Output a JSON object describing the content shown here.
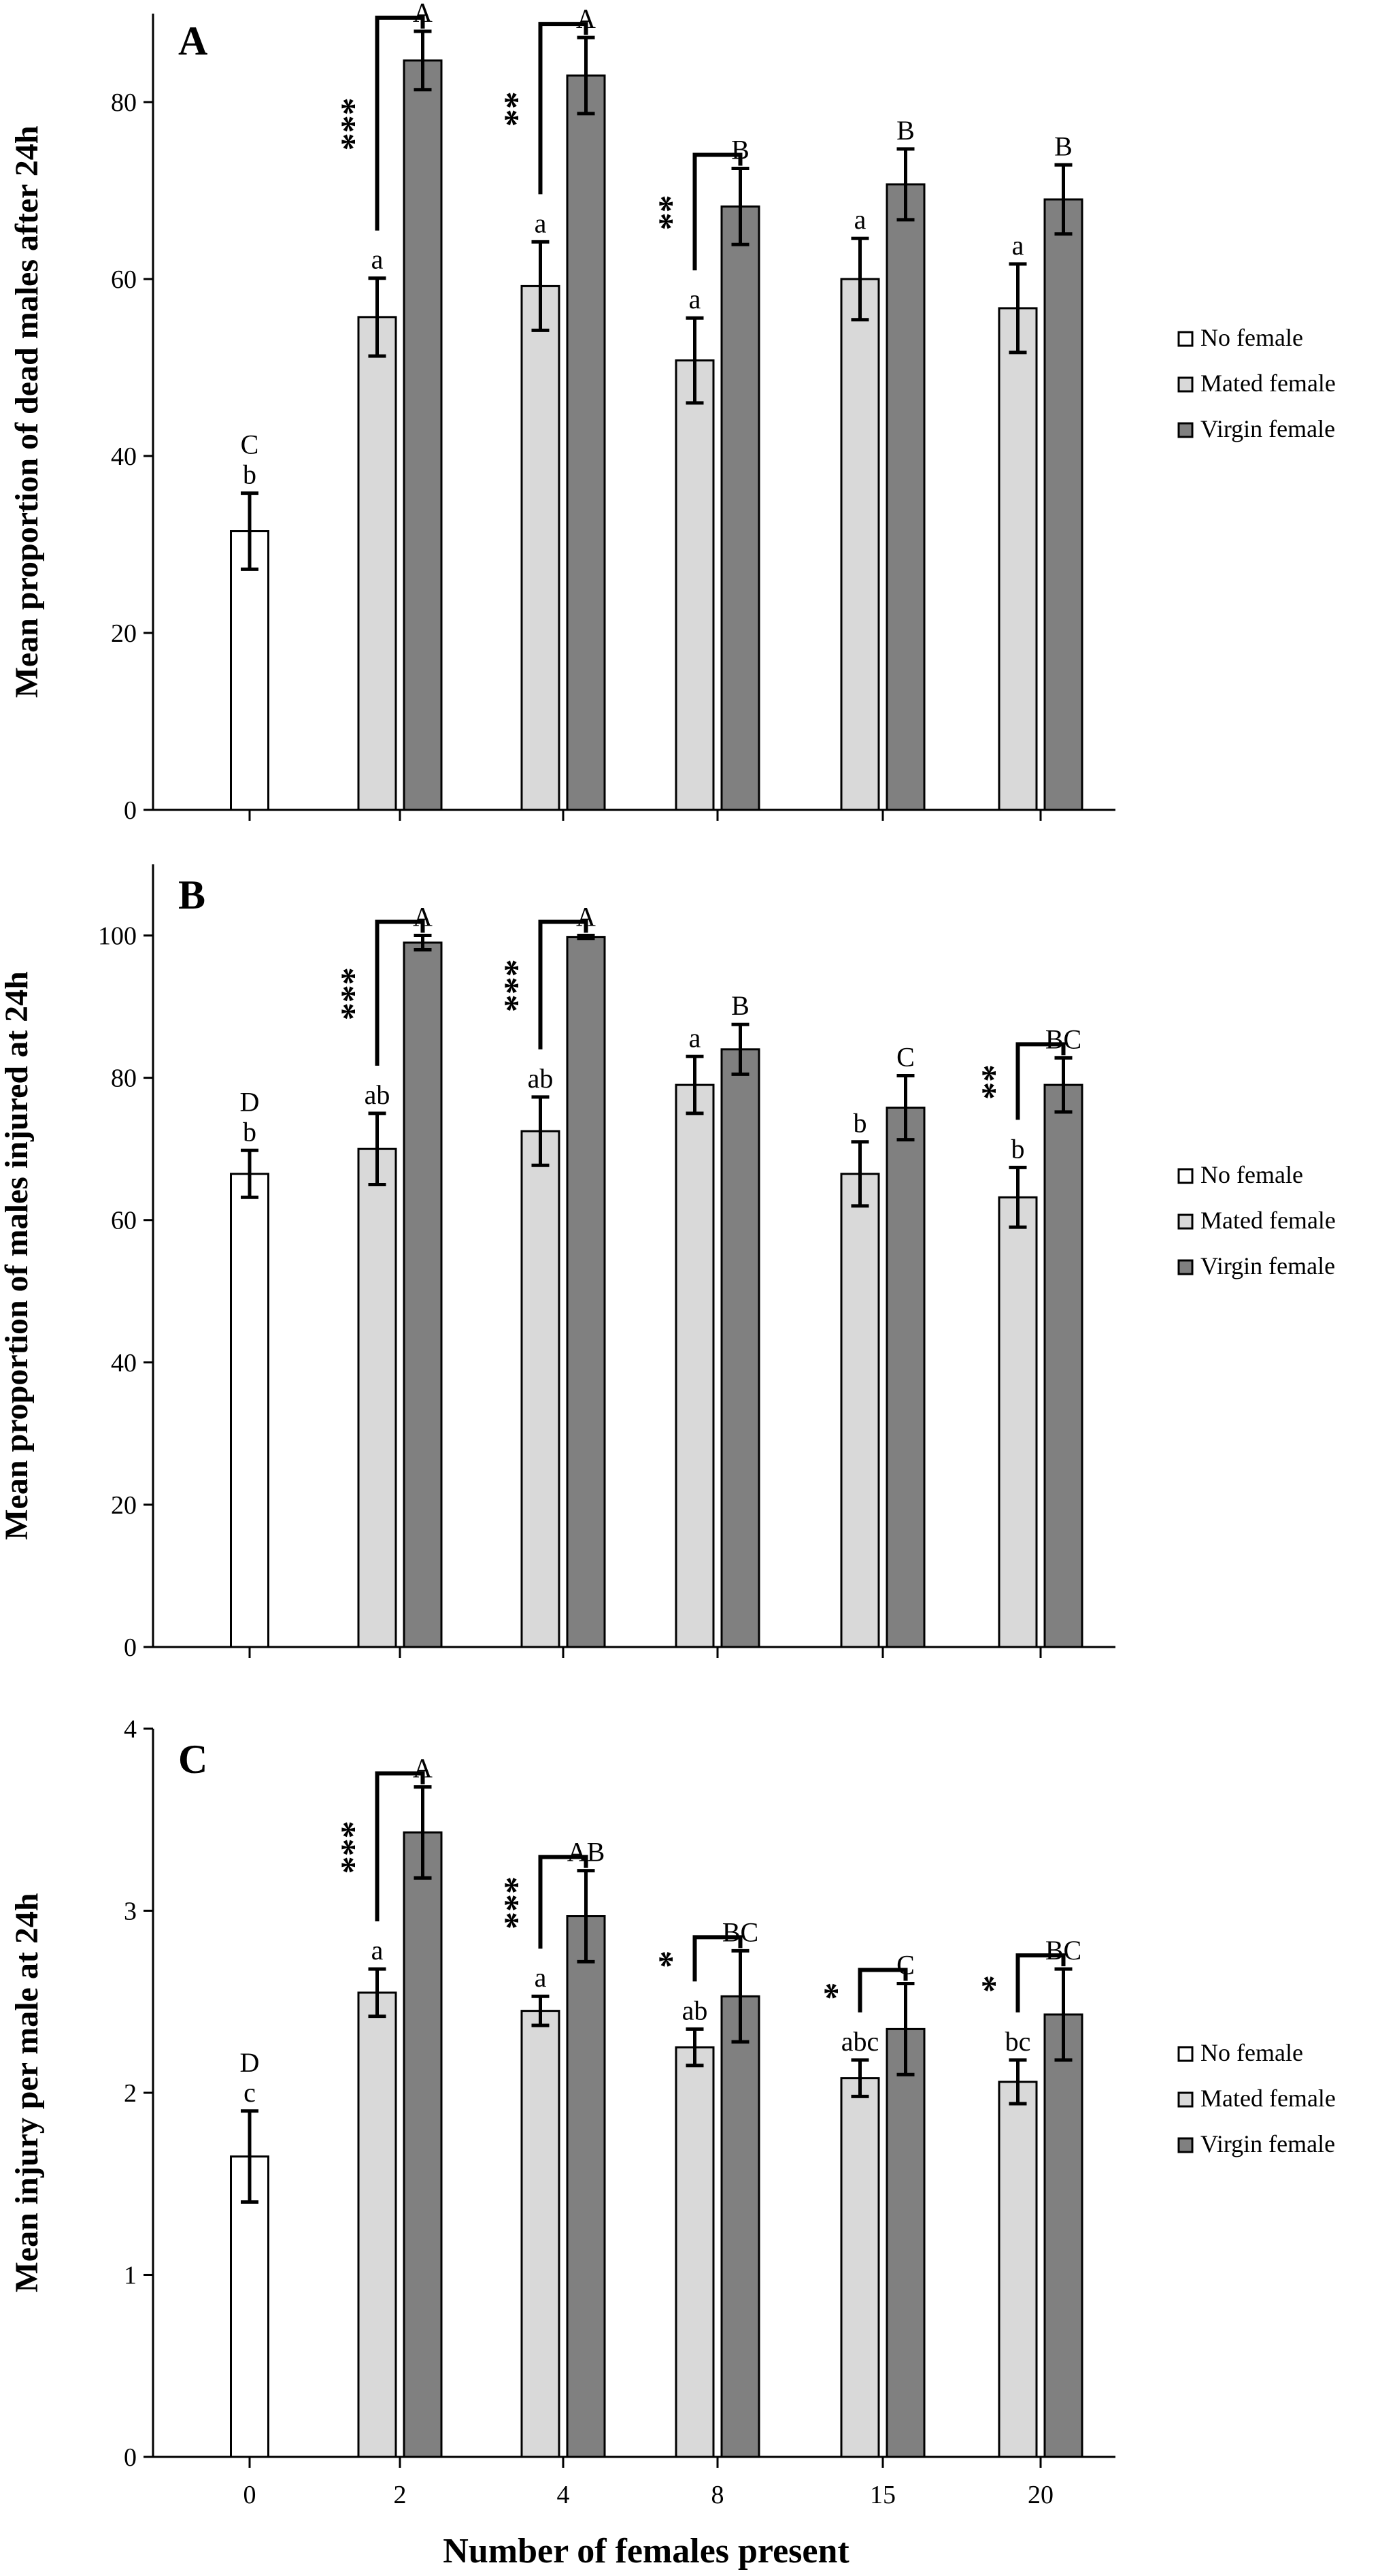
{
  "xlabel": "Number of females present",
  "legend": [
    {
      "label": "No female",
      "color": "#ffffff"
    },
    {
      "label": "Mated female",
      "color": "#d9d9d9"
    },
    {
      "label": "Virgin female",
      "color": "#808080"
    }
  ],
  "chart_data": [
    {
      "type": "bar",
      "panel": "A",
      "ylabel": "Mean proportion  of dead males after 24h",
      "ylim": [
        0,
        90
      ],
      "yticks": [
        0,
        20,
        40,
        60,
        80
      ],
      "categories": [
        "0",
        "2",
        "4",
        "8",
        "15",
        "20"
      ],
      "series": [
        {
          "name": "No female",
          "values": [
            31.5,
            null,
            null,
            null,
            null,
            null
          ],
          "errors": [
            4.3,
            null,
            null,
            null,
            null,
            null
          ],
          "letters": [
            "b",
            null,
            null,
            null,
            null,
            null
          ],
          "upper_letters": [
            "C",
            null,
            null,
            null,
            null,
            null
          ]
        },
        {
          "name": "Mated female",
          "values": [
            null,
            55.7,
            59.2,
            50.8,
            60.0,
            56.7
          ],
          "errors": [
            null,
            4.4,
            5.0,
            4.8,
            4.6,
            5.0
          ],
          "letters": [
            null,
            "a",
            "a",
            "a",
            "a",
            "a"
          ]
        },
        {
          "name": "Virgin female",
          "values": [
            null,
            84.7,
            83.0,
            68.2,
            70.7,
            69.0
          ],
          "errors": [
            null,
            3.3,
            4.3,
            4.3,
            4.0,
            3.9
          ],
          "letters": [
            null,
            "A",
            "A",
            "B",
            "B",
            "B"
          ]
        }
      ],
      "significance": [
        {
          "category": "2",
          "stars": "***"
        },
        {
          "category": "4",
          "stars": "**"
        },
        {
          "category": "8",
          "stars": "**"
        }
      ]
    },
    {
      "type": "bar",
      "panel": "B",
      "ylabel": "Mean proportion  of males injured  at 24h",
      "ylim": [
        0,
        110
      ],
      "yticks": [
        0,
        20,
        40,
        60,
        80,
        100
      ],
      "categories": [
        "0",
        "2",
        "4",
        "8",
        "15",
        "20"
      ],
      "series": [
        {
          "name": "No female",
          "values": [
            66.5,
            null,
            null,
            null,
            null,
            null
          ],
          "errors": [
            3.3,
            null,
            null,
            null,
            null,
            null
          ],
          "letters": [
            "b",
            null,
            null,
            null,
            null,
            null
          ],
          "upper_letters": [
            "D",
            null,
            null,
            null,
            null,
            null
          ]
        },
        {
          "name": "Mated female",
          "values": [
            null,
            70.0,
            72.5,
            79.0,
            66.5,
            63.2
          ],
          "errors": [
            null,
            5.0,
            4.8,
            4.0,
            4.5,
            4.2
          ],
          "letters": [
            null,
            "ab",
            "ab",
            "a",
            "b",
            "b"
          ]
        },
        {
          "name": "Virgin female",
          "values": [
            null,
            99.0,
            99.8,
            84.0,
            75.8,
            79.0
          ],
          "errors": [
            null,
            1.0,
            0.2,
            3.5,
            4.5,
            3.8
          ],
          "letters": [
            null,
            "A",
            "A",
            "B",
            "C",
            "BC"
          ]
        }
      ],
      "significance": [
        {
          "category": "2",
          "stars": "***"
        },
        {
          "category": "4",
          "stars": "***"
        },
        {
          "category": "20",
          "stars": "**"
        }
      ]
    },
    {
      "type": "bar",
      "panel": "C",
      "ylabel": "Mean injury per male at 24h",
      "xlabel": "Number of females present",
      "ylim": [
        0,
        4
      ],
      "yticks": [
        0,
        1,
        2,
        3,
        4
      ],
      "categories": [
        "0",
        "2",
        "4",
        "8",
        "15",
        "20"
      ],
      "series": [
        {
          "name": "No female",
          "values": [
            1.65,
            null,
            null,
            null,
            null,
            null
          ],
          "errors": [
            0.25,
            null,
            null,
            null,
            null,
            null
          ],
          "letters": [
            "c",
            null,
            null,
            null,
            null,
            null
          ],
          "upper_letters": [
            "D",
            null,
            null,
            null,
            null,
            null
          ]
        },
        {
          "name": "Mated female",
          "values": [
            null,
            2.55,
            2.45,
            2.25,
            2.08,
            2.06
          ],
          "errors": [
            null,
            0.13,
            0.08,
            0.1,
            0.1,
            0.12
          ],
          "letters": [
            null,
            "a",
            "a",
            "ab",
            "abc",
            "bc"
          ]
        },
        {
          "name": "Virgin female",
          "values": [
            null,
            3.43,
            2.97,
            2.53,
            2.35,
            2.43
          ],
          "errors": [
            null,
            0.25,
            0.25,
            0.25,
            0.25,
            0.25
          ],
          "letters": [
            null,
            "A",
            "AB",
            "BC",
            "C",
            "BC"
          ]
        }
      ],
      "significance": [
        {
          "category": "2",
          "stars": "***"
        },
        {
          "category": "4",
          "stars": "***"
        },
        {
          "category": "8",
          "stars": "*"
        },
        {
          "category": "15",
          "stars": "*"
        },
        {
          "category": "20",
          "stars": "*"
        }
      ]
    }
  ]
}
